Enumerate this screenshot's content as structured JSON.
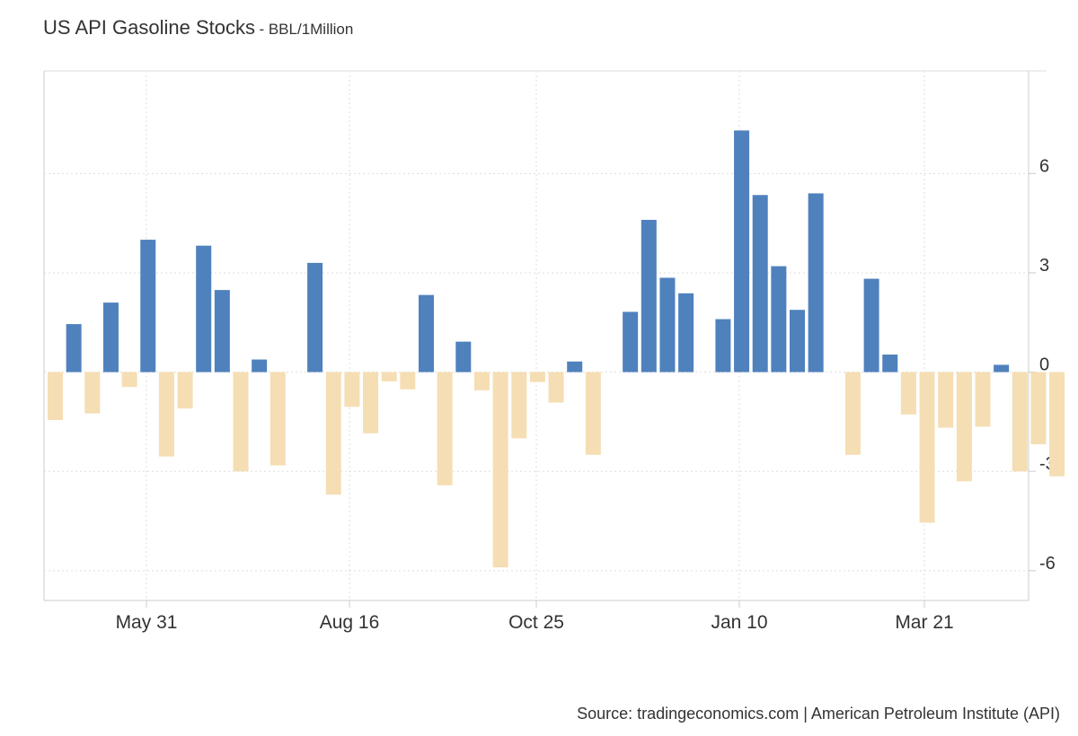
{
  "title": "US API Gasoline Stocks",
  "subtitle": "- BBL/1Million",
  "source": "Source: tradingeconomics.com | American Petroleum Institute (API)",
  "colors": {
    "positive": "#4f81bd",
    "negative": "#f5deb3",
    "grid": "#dddddd",
    "axis": "#cccccc",
    "text": "#333333"
  },
  "chart_data": {
    "type": "bar",
    "x_tick_labels": [
      "May 31",
      "Aug 16",
      "Oct 25",
      "Jan 10",
      "Mar 21"
    ],
    "y_tick_labels": [
      "6",
      "3",
      "0",
      "-3",
      "-6"
    ],
    "y_ticks": [
      6,
      3,
      0,
      -3,
      -6
    ],
    "ylim": [
      -6.9,
      9.1
    ],
    "grid": true,
    "values": [
      -1.45,
      1.45,
      -1.25,
      2.1,
      -0.45,
      4.0,
      -2.55,
      -1.1,
      3.82,
      2.48,
      -3.0,
      0.38,
      -2.82,
      null,
      3.3,
      -3.7,
      -1.05,
      -1.85,
      -0.28,
      -0.52,
      2.33,
      -3.42,
      0.92,
      -0.55,
      -5.9,
      -2.0,
      -0.3,
      -0.92,
      0.32,
      -2.5,
      null,
      1.82,
      4.6,
      2.85,
      2.38,
      null,
      1.6,
      7.3,
      5.35,
      3.2,
      1.88,
      5.4,
      null,
      -2.5,
      2.82,
      0.53,
      -1.28,
      -4.55,
      -1.68,
      -3.3,
      -1.65,
      0.22,
      -3.0,
      -2.18,
      -3.15
    ]
  }
}
